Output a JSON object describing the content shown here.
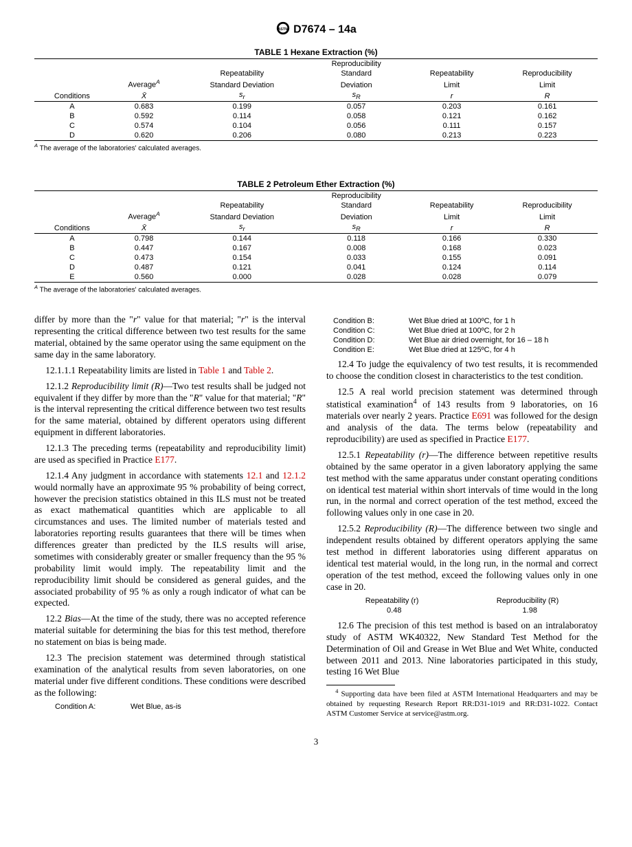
{
  "header": {
    "designation": "D7674 – 14a"
  },
  "table1": {
    "title": "TABLE 1 Hexane Extraction (%)",
    "headers": {
      "c1": "Conditions",
      "c2a": "Average",
      "c2sup": "A",
      "c2b": "X̄",
      "c3a": "Repeatability",
      "c3b": "Standard Deviation",
      "c3c": "sr",
      "c4a": "Reproducibility",
      "c4b": "Standard",
      "c4c": "Deviation",
      "c4d": "sR",
      "c5a": "Repeatability",
      "c5b": "Limit",
      "c5c": "r",
      "c6a": "Reproducibility",
      "c6b": "Limit",
      "c6c": "R"
    },
    "rows": [
      {
        "cond": "A",
        "avg": "0.683",
        "sr": "0.199",
        "sR": "0.057",
        "r": "0.203",
        "R": "0.161"
      },
      {
        "cond": "B",
        "avg": "0.592",
        "sr": "0.114",
        "sR": "0.058",
        "r": "0.121",
        "R": "0.162"
      },
      {
        "cond": "C",
        "avg": "0.574",
        "sr": "0.104",
        "sR": "0.056",
        "r": "0.111",
        "R": "0.157"
      },
      {
        "cond": "D",
        "avg": "0.620",
        "sr": "0.206",
        "sR": "0.080",
        "r": "0.213",
        "R": "0.223"
      }
    ],
    "footnote_sup": "A",
    "footnote": " The average of the laboratories' calculated averages."
  },
  "table2": {
    "title": "TABLE 2 Petroleum Ether Extraction (%)",
    "rows": [
      {
        "cond": "A",
        "avg": "0.798",
        "sr": "0.144",
        "sR": "0.118",
        "r": "0.166",
        "R": "0.330"
      },
      {
        "cond": "B",
        "avg": "0.447",
        "sr": "0.167",
        "sR": "0.008",
        "r": "0.168",
        "R": "0.023"
      },
      {
        "cond": "C",
        "avg": "0.473",
        "sr": "0.154",
        "sR": "0.033",
        "r": "0.155",
        "R": "0.091"
      },
      {
        "cond": "D",
        "avg": "0.487",
        "sr": "0.121",
        "sR": "0.041",
        "r": "0.124",
        "R": "0.114"
      },
      {
        "cond": "E",
        "avg": "0.560",
        "sr": "0.000",
        "sR": "0.028",
        "r": "0.028",
        "R": "0.079"
      }
    ],
    "footnote_sup": "A",
    "footnote": " The average of the laboratories' calculated averages."
  },
  "body": {
    "p1a": "differ by more than the \"",
    "p1r": "r",
    "p1b": "\" value for that material; \"",
    "p1r2": "r",
    "p1c": "\" is the interval representing the critical difference between two test results for the same material, obtained by the same operator using the same equipment on the same day in the same laboratory.",
    "p2a": "12.1.1.1 Repeatability limits are listed in ",
    "p2ref1": "Table 1",
    "p2b": " and ",
    "p2ref2": "Table 2",
    "p2c": ".",
    "p3a": "12.1.2 ",
    "p3i": "Reproducibility limit (R)",
    "p3b": "—Two test results shall be judged not equivalent if they differ by more than the \"",
    "p3R": "R",
    "p3c": "\" value for that material; \"",
    "p3R2": "R",
    "p3d": "\" is the interval representing the critical difference between two test results for the same material, obtained by different operators using different equipment in different laboratories.",
    "p4a": "12.1.3 The preceding terms (repeatability and reproducibility limit) are used as specified in Practice ",
    "p4ref": "E177",
    "p4b": ".",
    "p5a": "12.1.4 Any judgment in accordance with statements ",
    "p5ref1": "12.1",
    "p5b": " and ",
    "p5ref2": "12.1.2",
    "p5c": " would normally have an approximate 95 % probability of being correct, however the precision statistics obtained in this ILS must not be treated as exact mathematical quantities which are applicable to all circumstances and uses. The limited number of materials tested and laboratories reporting results guarantees that there will be times when differences greater than predicted by the ILS results will arise, sometimes with considerably greater or smaller frequency than the 95 % probability limit would imply. The repeatability limit and the reproducibility limit should be considered as general guides, and the associated probability of 95 % as only a rough indicator of what can be expected.",
    "p6a": "12.2 ",
    "p6i": "Bias",
    "p6b": "—At the time of the study, there was no accepted reference material suitable for determining the bias for this test method, therefore no statement on bias is being made.",
    "p7": "12.3 The precision statement was determined through statistical examination of the analytical results from seven laboratories, on one material under five different conditions. These conditions were described as the following:",
    "condA": {
      "label": "Condition A:",
      "val": "Wet Blue, as-is"
    },
    "condB": {
      "label": "Condition B:",
      "val": "Wet Blue dried at 100ºC, for 1 h"
    },
    "condC": {
      "label": "Condition C:",
      "val": "Wet Blue dried at 100ºC, for 2 h"
    },
    "condD": {
      "label": "Condition D:",
      "val": "Wet Blue air dried overnight, for 16 – 18 h"
    },
    "condE": {
      "label": "Condition E:",
      "val": "Wet Blue dried at 125ºC, for 4 h"
    },
    "p8": "12.4 To judge the equivalency of two test results, it is recommended to choose the condition closest in characteristics to the test condition.",
    "p9a": "12.5 A real world precision statement was determined through statistical examination",
    "p9sup": "4",
    "p9b": " of 143 results from 9 laboratories, on 16 materials over nearly 2 years. Practice ",
    "p9ref1": "E691",
    "p9c": " was followed for the design and analysis of the data. The terms below (repeatability and reproducibility) are used as specified in Practice ",
    "p9ref2": "E177",
    "p9d": ".",
    "p10a": "12.5.1 ",
    "p10i": "Repeatability (r)",
    "p10b": "—The difference between repetitive results obtained by the same operator in a given laboratory applying the same test method with the same apparatus under constant operating conditions on identical test material within short intervals of time would in the long run, in the normal and correct operation of the test method, exceed the following values only in one case in 20.",
    "p11a": "12.5.2 ",
    "p11i": "Reproducibility (R)",
    "p11b": "—The difference between two single and independent results obtained by different operators applying the same test method in different laboratories using different apparatus on identical test material would, in the long run, in the normal and correct operation of the test method, exceed the following values only in one case in 20.",
    "rr": {
      "h1": "Repeatability (r)",
      "h2": "Reproducibility (R)",
      "v1": "0.48",
      "v2": "1.98"
    },
    "p12": "12.6 The precision of this test method is based on an intralaboratoy study of ASTM WK40322, New Standard Test Method for the Determination of Oil and Grease in Wet Blue and Wet White, conducted between 2011 and 2013. Nine laboratories participated in this study, testing 16 Wet Blue",
    "foot4sup": "4",
    "foot4": " Supporting data have been filed at ASTM International Headquarters and may be obtained by requesting Research Report RR:D31-1019 and RR:D31-1022. Contact ASTM Customer Service at service@astm.org."
  },
  "pagenum": "3"
}
